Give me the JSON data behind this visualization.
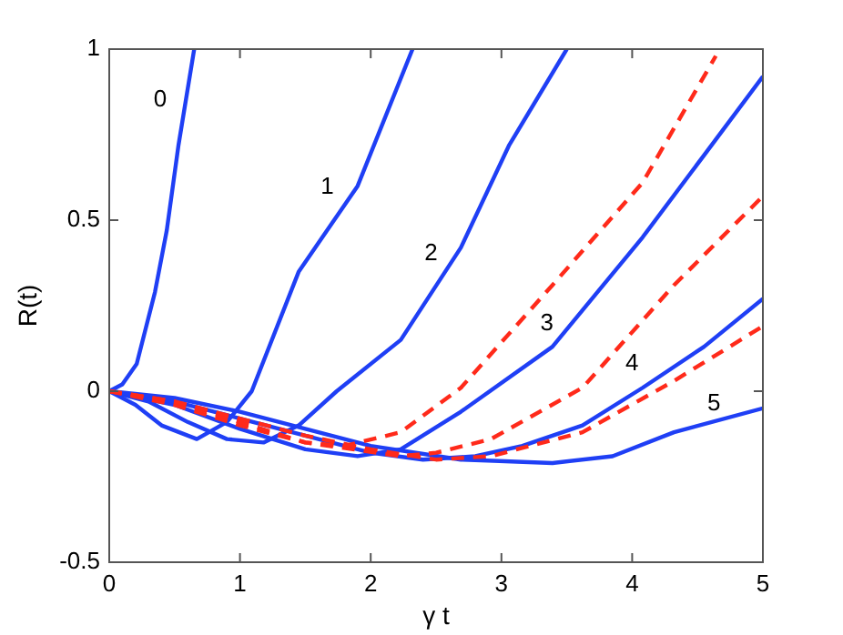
{
  "chart_data": {
    "type": "line",
    "xlabel": "γ t",
    "ylabel": "R(t)",
    "xlim": [
      0,
      5
    ],
    "ylim": [
      -0.5,
      1
    ],
    "xticks": [
      0,
      1,
      2,
      3,
      4,
      5
    ],
    "yticks": [
      -0.5,
      0,
      0.5,
      1
    ],
    "grid": false,
    "marker": "none",
    "series": [
      {
        "name": "0",
        "color": "#1f3ff5",
        "line_style": "solid",
        "x": [
          0,
          0.1,
          0.21,
          0.35,
          0.44,
          0.53,
          0.65
        ],
        "values": [
          0,
          0.02,
          0.08,
          0.29,
          0.47,
          0.72,
          1
        ]
      },
      {
        "name": "1",
        "color": "#1f3ff5",
        "line_style": "solid",
        "x": [
          0,
          0.2,
          0.4,
          0.67,
          0.9,
          1.09,
          1.45,
          1.9,
          2.32
        ],
        "values": [
          0,
          -0.04,
          -0.1,
          -0.14,
          -0.09,
          0,
          0.35,
          0.6,
          1
        ]
      },
      {
        "name": "2",
        "color": "#1f3ff5",
        "line_style": "solid",
        "x": [
          0,
          0.3,
          0.6,
          0.9,
          1.18,
          1.45,
          1.74,
          2.23,
          2.69,
          3.06,
          3.5
        ],
        "values": [
          0,
          -0.03,
          -0.09,
          -0.14,
          -0.15,
          -0.1,
          0,
          0.15,
          0.42,
          0.72,
          1
        ]
      },
      {
        "name": "3",
        "color": "#1f3ff5",
        "line_style": "solid",
        "x": [
          0,
          0.5,
          1,
          1.5,
          1.9,
          2.23,
          2.69,
          3.39,
          4.08,
          4.55,
          5
        ],
        "values": [
          0,
          -0.04,
          -0.11,
          -0.17,
          -0.19,
          -0.17,
          -0.06,
          0.13,
          0.45,
          0.69,
          0.92
        ]
      },
      {
        "name": "4",
        "color": "#1f3ff5",
        "line_style": "solid",
        "x": [
          0,
          0.5,
          1,
          1.5,
          2,
          2.4,
          2.8,
          3.16,
          3.62,
          4.08,
          4.55,
          5
        ],
        "values": [
          0,
          -0.03,
          -0.08,
          -0.13,
          -0.18,
          -0.2,
          -0.19,
          -0.16,
          -0.1,
          0.01,
          0.13,
          0.27
        ]
      },
      {
        "name": "5",
        "color": "#1f3ff5",
        "line_style": "solid",
        "x": [
          0,
          0.5,
          1,
          1.5,
          2,
          2.69,
          3.39,
          3.85,
          4.32,
          5
        ],
        "values": [
          0,
          -0.02,
          -0.06,
          -0.11,
          -0.16,
          -0.2,
          -0.21,
          -0.19,
          -0.12,
          -0.05
        ]
      },
      {
        "color": "#ff2a1a",
        "line_style": "dashed",
        "x": [
          0,
          0.5,
          1,
          1.5,
          1.8,
          2.23,
          2.69,
          3.39,
          4.08,
          4.64
        ],
        "values": [
          0,
          -0.04,
          -0.1,
          -0.15,
          -0.16,
          -0.12,
          0.01,
          0.31,
          0.61,
          0.98
        ]
      },
      {
        "color": "#ff2a1a",
        "line_style": "dashed",
        "x": [
          0,
          0.5,
          1,
          1.5,
          2.23,
          2.5,
          2.92,
          3.62,
          4.32,
          5
        ],
        "values": [
          0,
          -0.03,
          -0.09,
          -0.15,
          -0.19,
          -0.18,
          -0.14,
          0.01,
          0.31,
          0.57
        ]
      },
      {
        "color": "#ff2a1a",
        "line_style": "dashed",
        "x": [
          0,
          0.5,
          1,
          1.5,
          2,
          2.5,
          2.92,
          3.62,
          4.32,
          5
        ],
        "values": [
          0,
          -0.03,
          -0.08,
          -0.13,
          -0.17,
          -0.2,
          -0.19,
          -0.12,
          0.03,
          0.19
        ]
      }
    ]
  }
}
